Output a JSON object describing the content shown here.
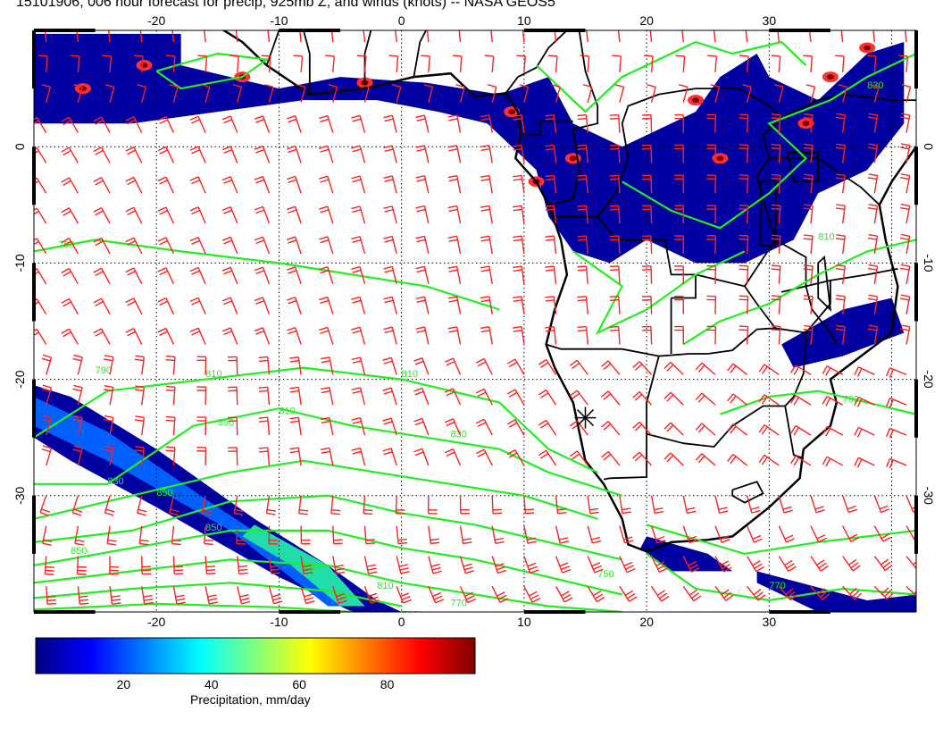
{
  "title": "15101906, 006 hour forecast for precip, 925mb Z, and winds (knots) -- NASA GEOS5",
  "map": {
    "lon_range": [
      -30,
      42
    ],
    "lat_range": [
      -40,
      10
    ],
    "lon_ticks": [
      "-20",
      "-10",
      "0",
      "10",
      "20",
      "30"
    ],
    "lat_ticks": [
      "0",
      "-10",
      "-20",
      "-30"
    ],
    "contour_labels": [
      "790",
      "790",
      "810",
      "810",
      "810",
      "830",
      "830",
      "850",
      "850",
      "850",
      "850",
      "830",
      "810",
      "790",
      "770",
      "750",
      "770",
      "790",
      "810",
      "830"
    ],
    "marker": "station-star",
    "colors": {
      "wind_barbs": "#ff2020",
      "contours": "#22ee22",
      "coastlines": "#000000",
      "grid": "#000000"
    }
  },
  "colorbar": {
    "label": "Precipitation, mm/day",
    "ticks": [
      "20",
      "40",
      "60",
      "80"
    ],
    "range": [
      0,
      100
    ],
    "colors": [
      "#00007f",
      "#0000ff",
      "#0080ff",
      "#00ffff",
      "#80ff80",
      "#ffff00",
      "#ff8000",
      "#ff0000",
      "#7f0000"
    ]
  }
}
